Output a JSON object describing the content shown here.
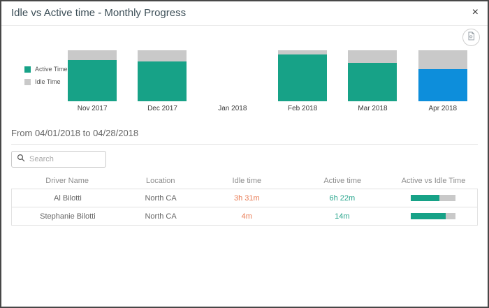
{
  "modal": {
    "title": "Idle vs Active time - Monthly Progress",
    "close_label": "×"
  },
  "legend": {
    "active_label": "Active Time",
    "idle_label": "Idle Time"
  },
  "chart_data": {
    "type": "bar",
    "stacked": true,
    "categories": [
      "Nov 2017",
      "Dec 2017",
      "Jan 2018",
      "Feb 2018",
      "Mar 2018",
      "Apr 2018"
    ],
    "series": [
      {
        "name": "Active Time",
        "color": "#17A287",
        "values": [
          81,
          78,
          0,
          92,
          75,
          63
        ]
      },
      {
        "name": "Idle Time",
        "color": "#C9C9C9",
        "values": [
          19,
          22,
          0,
          8,
          25,
          37
        ]
      }
    ],
    "unit": "percent of month total",
    "highlighted_category": "Apr 2018",
    "highlight_color": "#0D8EDB",
    "ylim": [
      0,
      100
    ],
    "grid": false,
    "legend_position": "left",
    "title": "Idle vs Active time - Monthly Progress"
  },
  "filter": {
    "range_heading": "From 04/01/2018 to 04/28/2018"
  },
  "search": {
    "placeholder": "Search",
    "value": ""
  },
  "table": {
    "columns": [
      "Driver Name",
      "Location",
      "Idle time",
      "Active time",
      "Active vs Idle Time"
    ],
    "rows": [
      {
        "driver": "Al Bilotti",
        "location": "North CA",
        "idle": "3h 31m",
        "active": "6h 22m",
        "active_pct": 64
      },
      {
        "driver": "Stephanie Bilotti",
        "location": "North CA",
        "idle": "4m",
        "active": "14m",
        "active_pct": 78
      }
    ]
  },
  "colors": {
    "active": "#17A287",
    "idle": "#C9C9C9",
    "highlight": "#0D8EDB",
    "idle_text": "#E97C55",
    "active_text": "#27A58C",
    "bar_track": "#C9C9C9"
  }
}
